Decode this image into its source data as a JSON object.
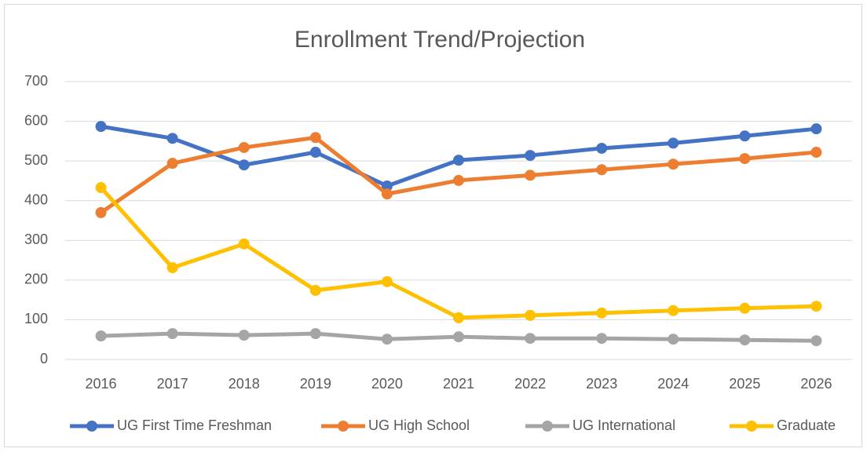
{
  "chart_data": {
    "type": "line",
    "title": "Enrollment Trend/Projection",
    "categories": [
      "2016",
      "2017",
      "2018",
      "2019",
      "2020",
      "2021",
      "2022",
      "2023",
      "2024",
      "2025",
      "2026"
    ],
    "series": [
      {
        "name": "UG First Time Freshman",
        "color": "#4472c4",
        "values": [
          587,
          557,
          490,
          522,
          437,
          502,
          514,
          532,
          545,
          563,
          581
        ]
      },
      {
        "name": "UG High School",
        "color": "#ed7d31",
        "values": [
          370,
          494,
          534,
          559,
          417,
          451,
          464,
          478,
          492,
          506,
          522
        ]
      },
      {
        "name": "UG International",
        "color": "#a5a5a5",
        "values": [
          59,
          65,
          61,
          65,
          51,
          57,
          53,
          53,
          51,
          49,
          47
        ]
      },
      {
        "name": "Graduate",
        "color": "#ffc000",
        "values": [
          433,
          231,
          291,
          174,
          196,
          105,
          111,
          117,
          123,
          129,
          134
        ]
      }
    ],
    "ylim": [
      0,
      700
    ],
    "yticks": [
      0,
      100,
      200,
      300,
      400,
      500,
      600,
      700
    ],
    "grid": true,
    "legend": "bottom"
  }
}
